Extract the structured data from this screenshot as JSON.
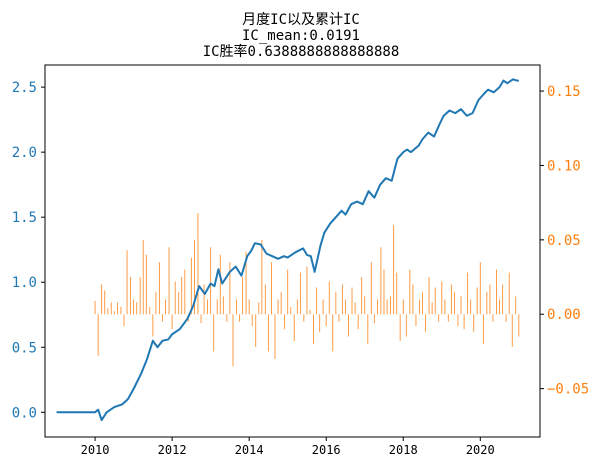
{
  "title": {
    "line1": "月度IC以及累计IC",
    "line2": "IC_mean:0.0191",
    "line3": "IC胜率0.6388888888888888"
  },
  "colors": {
    "line": "#1f77b4",
    "bars": "#ff7f0e",
    "axis": "#000000"
  },
  "chart_data": {
    "type": "bar+line",
    "x_ticks": [
      "2010",
      "2012",
      "2014",
      "2016",
      "2018",
      "2020"
    ],
    "x_range": [
      2008.7,
      2021.55
    ],
    "y_left": {
      "label": "",
      "range": [
        -0.19,
        2.67
      ],
      "ticks": [
        "0.0",
        "0.5",
        "1.0",
        "1.5",
        "2.0",
        "2.5"
      ],
      "tick_values": [
        0.0,
        0.5,
        1.0,
        1.5,
        2.0,
        2.5
      ]
    },
    "y_right": {
      "label": "",
      "range": [
        -0.0825,
        0.1675
      ],
      "ticks": [
        "−0.05",
        "0.00",
        "0.05",
        "0.10",
        "0.15"
      ],
      "tick_values": [
        -0.05,
        0.0,
        0.05,
        0.1,
        0.15
      ]
    },
    "series": [
      {
        "type": "line",
        "axis": "left",
        "x": [
          2009.0,
          2009.5,
          2010.0,
          2010.08,
          2010.17,
          2010.3,
          2010.5,
          2010.7,
          2010.85,
          2011.0,
          2011.2,
          2011.35,
          2011.5,
          2011.62,
          2011.75,
          2011.9,
          2012.0,
          2012.2,
          2012.4,
          2012.55,
          2012.7,
          2012.85,
          2013.0,
          2013.1,
          2013.2,
          2013.3,
          2013.5,
          2013.65,
          2013.8,
          2013.95,
          2014.05,
          2014.15,
          2014.3,
          2014.45,
          2014.6,
          2014.75,
          2014.9,
          2015.0,
          2015.2,
          2015.4,
          2015.5,
          2015.6,
          2015.7,
          2015.85,
          2015.95,
          2016.1,
          2016.25,
          2016.4,
          2016.5,
          2016.65,
          2016.8,
          2016.95,
          2017.1,
          2017.25,
          2017.4,
          2017.55,
          2017.7,
          2017.85,
          2018.0,
          2018.1,
          2018.2,
          2018.4,
          2018.5,
          2018.65,
          2018.8,
          2018.95,
          2019.05,
          2019.2,
          2019.35,
          2019.5,
          2019.65,
          2019.8,
          2019.95,
          2020.1,
          2020.2,
          2020.35,
          2020.5,
          2020.6,
          2020.7,
          2020.85,
          2020.95,
          2021.0
        ],
        "y": [
          0.0,
          0.0,
          0.0,
          0.02,
          -0.06,
          0.0,
          0.04,
          0.06,
          0.1,
          0.18,
          0.3,
          0.41,
          0.55,
          0.5,
          0.55,
          0.56,
          0.6,
          0.64,
          0.72,
          0.82,
          0.97,
          0.91,
          0.99,
          0.97,
          1.1,
          0.99,
          1.08,
          1.12,
          1.05,
          1.2,
          1.24,
          1.3,
          1.29,
          1.22,
          1.2,
          1.18,
          1.2,
          1.19,
          1.23,
          1.26,
          1.21,
          1.2,
          1.08,
          1.28,
          1.38,
          1.45,
          1.5,
          1.55,
          1.52,
          1.6,
          1.62,
          1.6,
          1.7,
          1.65,
          1.75,
          1.8,
          1.78,
          1.95,
          2.0,
          2.02,
          2.0,
          2.05,
          2.1,
          2.15,
          2.12,
          2.22,
          2.28,
          2.32,
          2.3,
          2.33,
          2.28,
          2.3,
          2.4,
          2.45,
          2.48,
          2.46,
          2.5,
          2.55,
          2.53,
          2.56,
          2.55,
          2.55
        ]
      },
      {
        "type": "bar",
        "axis": "right",
        "x": [
          2010.0,
          2010.08,
          2010.17,
          2010.25,
          2010.33,
          2010.42,
          2010.5,
          2010.58,
          2010.67,
          2010.75,
          2010.83,
          2010.92,
          2011.0,
          2011.08,
          2011.17,
          2011.25,
          2011.33,
          2011.42,
          2011.5,
          2011.58,
          2011.67,
          2011.75,
          2011.83,
          2011.92,
          2012.0,
          2012.08,
          2012.17,
          2012.25,
          2012.33,
          2012.42,
          2012.5,
          2012.58,
          2012.67,
          2012.75,
          2012.83,
          2012.92,
          2013.0,
          2013.08,
          2013.17,
          2013.25,
          2013.33,
          2013.42,
          2013.5,
          2013.58,
          2013.67,
          2013.75,
          2013.83,
          2013.92,
          2014.0,
          2014.08,
          2014.17,
          2014.25,
          2014.33,
          2014.42,
          2014.5,
          2014.58,
          2014.67,
          2014.75,
          2014.83,
          2014.92,
          2015.0,
          2015.08,
          2015.17,
          2015.25,
          2015.33,
          2015.42,
          2015.5,
          2015.58,
          2015.67,
          2015.75,
          2015.83,
          2015.92,
          2016.0,
          2016.08,
          2016.17,
          2016.25,
          2016.33,
          2016.42,
          2016.5,
          2016.58,
          2016.67,
          2016.75,
          2016.83,
          2016.92,
          2017.0,
          2017.08,
          2017.17,
          2017.25,
          2017.33,
          2017.42,
          2017.5,
          2017.58,
          2017.67,
          2017.75,
          2017.83,
          2017.92,
          2018.0,
          2018.08,
          2018.17,
          2018.25,
          2018.33,
          2018.42,
          2018.5,
          2018.58,
          2018.67,
          2018.75,
          2018.83,
          2018.92,
          2019.0,
          2019.08,
          2019.17,
          2019.25,
          2019.33,
          2019.42,
          2019.5,
          2019.58,
          2019.67,
          2019.75,
          2019.83,
          2019.92,
          2020.0,
          2020.08,
          2020.17,
          2020.25,
          2020.33,
          2020.42,
          2020.5,
          2020.58,
          2020.67,
          2020.75,
          2020.83,
          2020.92,
          2021.0
        ],
        "values": [
          0.009,
          -0.028,
          0.02,
          0.016,
          0.004,
          0.008,
          0.002,
          0.008,
          0.005,
          -0.008,
          0.043,
          0.025,
          0.01,
          0.008,
          0.025,
          0.05,
          0.04,
          0.005,
          -0.015,
          0.015,
          0.035,
          -0.005,
          0.01,
          0.045,
          -0.01,
          0.022,
          0.015,
          0.025,
          0.03,
          -0.005,
          0.038,
          0.05,
          0.068,
          -0.006,
          0.02,
          0.01,
          0.045,
          -0.025,
          0.01,
          0.04,
          0.012,
          -0.005,
          0.035,
          -0.035,
          0.01,
          -0.005,
          0.025,
          0.042,
          0.01,
          -0.008,
          -0.022,
          0.008,
          0.05,
          0.02,
          -0.025,
          0.035,
          -0.03,
          0.01,
          0.015,
          -0.01,
          0.03,
          0.005,
          -0.018,
          0.01,
          0.028,
          -0.005,
          0.032,
          0.003,
          -0.02,
          0.018,
          -0.012,
          0.01,
          -0.008,
          0.022,
          -0.025,
          0.015,
          -0.005,
          0.02,
          0.01,
          -0.015,
          0.018,
          0.008,
          -0.01,
          0.025,
          0.012,
          -0.02,
          0.035,
          -0.006,
          0.01,
          0.045,
          0.03,
          0.01,
          0.012,
          0.06,
          0.028,
          -0.018,
          0.01,
          -0.015,
          0.03,
          0.02,
          -0.008,
          0.01,
          0.015,
          -0.012,
          0.025,
          0.008,
          0.018,
          -0.005,
          0.022,
          0.01,
          -0.005,
          0.02,
          0.015,
          -0.008,
          0.012,
          -0.01,
          0.028,
          0.01,
          -0.012,
          0.018,
          0.035,
          -0.02,
          0.015,
          0.02,
          -0.005,
          0.03,
          0.01,
          0.02,
          -0.005,
          0.028,
          -0.022,
          0.012,
          -0.015
        ]
      }
    ]
  }
}
